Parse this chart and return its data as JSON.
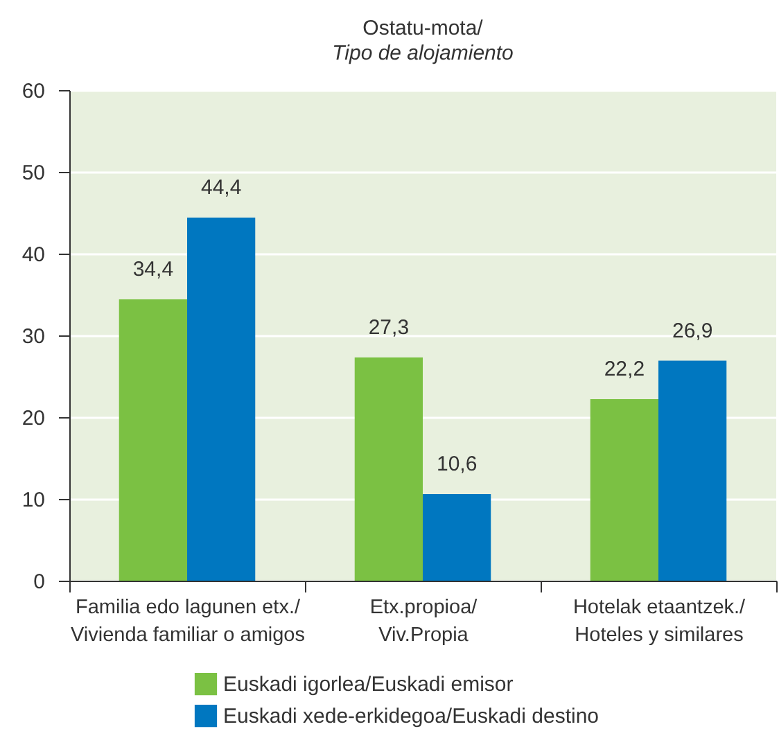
{
  "chart_data": {
    "type": "bar",
    "title": "Ostatu-mota/",
    "subtitle": "Tipo de alojamiento",
    "categories": [
      "Familia edo lagunen etx./Vivienda familiar o amigos",
      "Etx.propioa/Viv.Propia",
      "Hotelak etaantzek./Hoteles y similares"
    ],
    "series": [
      {
        "name": "Euskadi igorlea/Euskadi emisor",
        "color": "#7bc143",
        "values": [
          34.4,
          27.3,
          22.2
        ],
        "value_labels": [
          "34,4",
          "27,3",
          "22,2"
        ]
      },
      {
        "name": "Euskadi xede-erkidegoa/Euskadi destino",
        "color": "#0077c0",
        "values": [
          44.4,
          10.6,
          26.9
        ],
        "value_labels": [
          "44,4",
          "10,6",
          "26,9"
        ]
      }
    ],
    "ylim": [
      0,
      60
    ],
    "yticks": [
      0,
      10,
      20,
      30,
      40,
      50,
      60
    ],
    "grid": "y",
    "legend": "bottom"
  }
}
